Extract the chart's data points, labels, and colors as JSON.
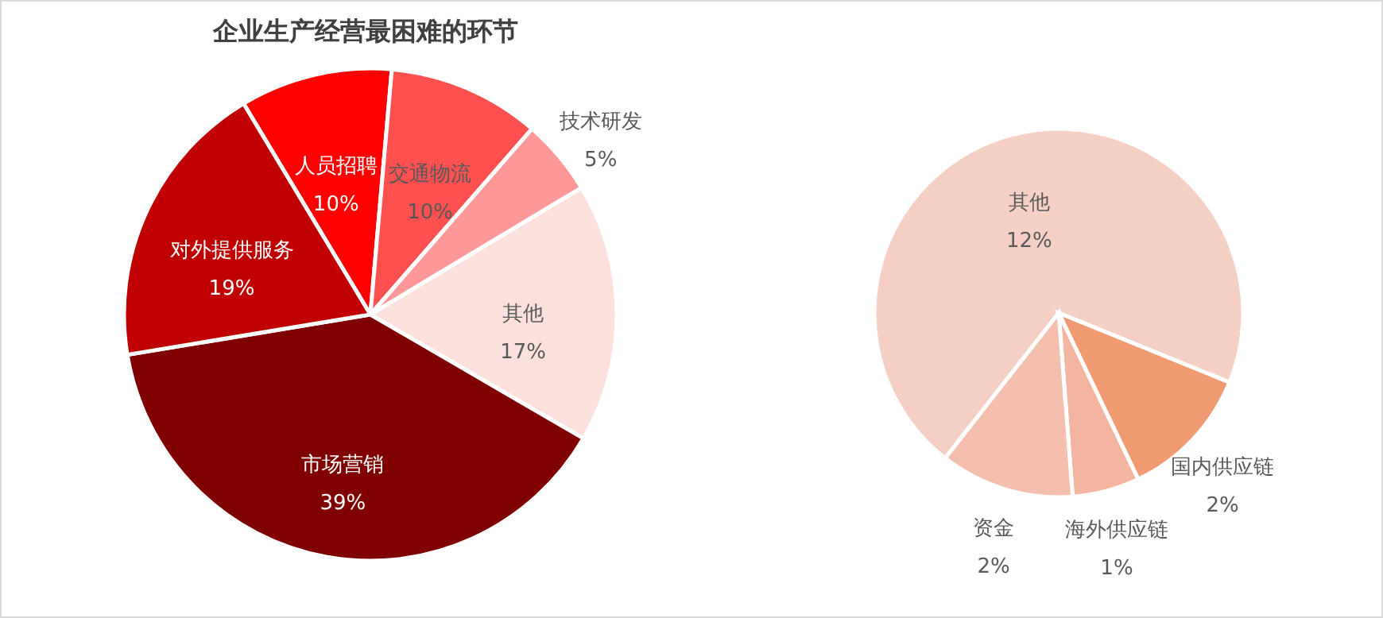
{
  "chart_data": [
    {
      "type": "pie",
      "title": "企业生产经营最困难的环节",
      "categories": [
        "人员招聘",
        "交通物流",
        "技术研发",
        "其他",
        "市场营销",
        "对外提供服务"
      ],
      "values": [
        10,
        10,
        5,
        17,
        39,
        19
      ],
      "value_labels": [
        "10%",
        "10%",
        "5%",
        "17%",
        "39%",
        "19%"
      ],
      "colors": [
        "#ff0000",
        "#ff5050",
        "#ff9999",
        "#fbe0dc",
        "#800000",
        "#c00000"
      ]
    },
    {
      "type": "pie",
      "categories": [
        "其他",
        "国内供应链",
        "海外供应链",
        "资金"
      ],
      "values": [
        12,
        2,
        1,
        2
      ],
      "value_labels": [
        "12%",
        "2%",
        "1%",
        "2%"
      ],
      "colors": [
        "#f6d0c4",
        "#f09b72",
        "#f3b59f",
        "#f5bfad"
      ]
    }
  ]
}
